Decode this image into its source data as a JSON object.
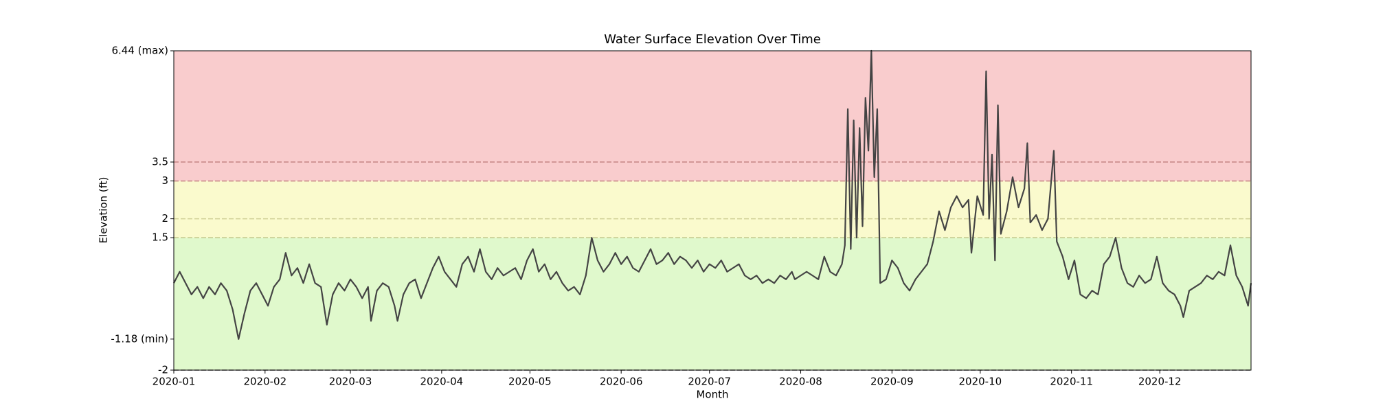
{
  "chart_data": {
    "type": "line",
    "title": "Water Surface Elevation Over Time",
    "xlabel": "Month",
    "ylabel": "Elevation (ft)",
    "color": "#444444",
    "xlim": [
      0,
      366
    ],
    "xticks": [
      {
        "value": 0,
        "label": "2020-01"
      },
      {
        "value": 31,
        "label": "2020-02"
      },
      {
        "value": 60,
        "label": "2020-03"
      },
      {
        "value": 91,
        "label": "2020-04"
      },
      {
        "value": 121,
        "label": "2020-05"
      },
      {
        "value": 152,
        "label": "2020-06"
      },
      {
        "value": 182,
        "label": "2020-07"
      },
      {
        "value": 213,
        "label": "2020-08"
      },
      {
        "value": 244,
        "label": "2020-09"
      },
      {
        "value": 274,
        "label": "2020-10"
      },
      {
        "value": 305,
        "label": "2020-11"
      },
      {
        "value": 335,
        "label": "2020-12"
      }
    ],
    "ylim": [
      -2,
      6.44
    ],
    "yticks": [
      -2,
      {
        "value": -1.18,
        "label": "-1.18 (min)"
      },
      1.5,
      2,
      3,
      3.5,
      {
        "value": 6.44,
        "label": "6.44 (max)"
      }
    ],
    "bands": [
      {
        "from": -2,
        "to": 1.5,
        "color": "#e0f9cc"
      },
      {
        "from": 1.5,
        "to": 3,
        "color": "#fafacd"
      },
      {
        "from": 3,
        "to": 6.44,
        "color": "#f9cccd"
      }
    ],
    "thresholds": [
      {
        "value": -2,
        "color": "#666666"
      },
      {
        "value": 1.5,
        "color": "#c2c98f"
      },
      {
        "value": 2,
        "color": "#cfcf95"
      },
      {
        "value": 3,
        "color": "#c98a8a"
      },
      {
        "value": 3.5,
        "color": "#c98a8a"
      }
    ],
    "x": [
      0,
      2,
      4,
      6,
      8,
      10,
      12,
      14,
      16,
      18,
      20,
      22,
      24,
      26,
      28,
      30,
      32,
      34,
      36,
      38,
      40,
      42,
      44,
      46,
      48,
      50,
      52,
      54,
      56,
      58,
      60,
      62,
      64,
      66,
      67,
      69,
      71,
      73,
      75,
      76,
      78,
      80,
      82,
      84,
      86,
      88,
      90,
      92,
      94,
      96,
      98,
      100,
      102,
      104,
      106,
      108,
      110,
      112,
      114,
      116,
      118,
      120,
      122,
      124,
      126,
      128,
      130,
      132,
      134,
      136,
      138,
      140,
      142,
      144,
      146,
      148,
      150,
      152,
      154,
      156,
      158,
      160,
      162,
      164,
      166,
      168,
      170,
      172,
      174,
      176,
      178,
      180,
      182,
      184,
      186,
      188,
      190,
      192,
      194,
      196,
      198,
      200,
      202,
      204,
      206,
      208,
      210,
      211,
      213,
      215,
      217,
      219,
      221,
      223,
      225,
      227,
      228,
      229,
      230,
      231,
      232,
      233,
      234,
      235,
      236,
      237,
      238,
      239,
      240,
      242,
      244,
      246,
      248,
      250,
      252,
      254,
      256,
      258,
      260,
      262,
      264,
      266,
      268,
      270,
      271,
      273,
      275,
      276,
      277,
      278,
      279,
      280,
      281,
      283,
      285,
      287,
      289,
      290,
      291,
      293,
      295,
      297,
      299,
      300,
      302,
      304,
      306,
      308,
      310,
      312,
      314,
      316,
      318,
      320,
      322,
      324,
      326,
      328,
      330,
      332,
      334,
      336,
      338,
      340,
      342,
      343,
      345,
      347,
      349,
      351,
      353,
      355,
      357,
      359,
      361,
      363,
      365,
      366
    ],
    "values": [
      0.3,
      0.6,
      0.3,
      0.0,
      0.2,
      -0.1,
      0.2,
      0.0,
      0.3,
      0.1,
      -0.4,
      -1.18,
      -0.5,
      0.1,
      0.3,
      0.0,
      -0.3,
      0.2,
      0.4,
      1.1,
      0.5,
      0.7,
      0.3,
      0.8,
      0.3,
      0.2,
      -0.8,
      0.0,
      0.3,
      0.1,
      0.4,
      0.2,
      -0.1,
      0.2,
      -0.7,
      0.1,
      0.3,
      0.2,
      -0.3,
      -0.7,
      0.0,
      0.3,
      0.4,
      -0.1,
      0.3,
      0.7,
      1.0,
      0.6,
      0.4,
      0.2,
      0.8,
      1.0,
      0.6,
      1.2,
      0.6,
      0.4,
      0.7,
      0.5,
      0.6,
      0.7,
      0.4,
      0.9,
      1.2,
      0.6,
      0.8,
      0.4,
      0.6,
      0.3,
      0.1,
      0.2,
      0.0,
      0.5,
      1.5,
      0.9,
      0.6,
      0.8,
      1.1,
      0.8,
      1.0,
      0.7,
      0.6,
      0.9,
      1.2,
      0.8,
      0.9,
      1.1,
      0.8,
      1.0,
      0.9,
      0.7,
      0.9,
      0.6,
      0.8,
      0.7,
      0.9,
      0.6,
      0.7,
      0.8,
      0.5,
      0.4,
      0.5,
      0.3,
      0.4,
      0.3,
      0.5,
      0.4,
      0.6,
      0.4,
      0.5,
      0.6,
      0.5,
      0.4,
      1.0,
      0.6,
      0.5,
      0.8,
      1.3,
      4.9,
      1.2,
      4.6,
      1.5,
      4.4,
      1.8,
      5.2,
      3.8,
      6.44,
      3.1,
      4.9,
      0.3,
      0.4,
      0.9,
      0.7,
      0.3,
      0.1,
      0.4,
      0.6,
      0.8,
      1.4,
      2.2,
      1.7,
      2.3,
      2.6,
      2.3,
      2.5,
      1.1,
      2.6,
      2.1,
      5.9,
      2.0,
      3.7,
      0.9,
      5.0,
      1.6,
      2.2,
      3.1,
      2.3,
      2.8,
      4.0,
      1.9,
      2.1,
      1.7,
      2.0,
      3.8,
      1.4,
      1.0,
      0.4,
      0.9,
      0.0,
      -0.1,
      0.1,
      0.0,
      0.8,
      1.0,
      1.5,
      0.7,
      0.3,
      0.2,
      0.5,
      0.3,
      0.4,
      1.0,
      0.3,
      0.1,
      0.0,
      -0.3,
      -0.6,
      0.1,
      0.2,
      0.3,
      0.5,
      0.4,
      0.6,
      0.5,
      1.3,
      0.5,
      0.2,
      -0.3,
      0.3
    ]
  }
}
